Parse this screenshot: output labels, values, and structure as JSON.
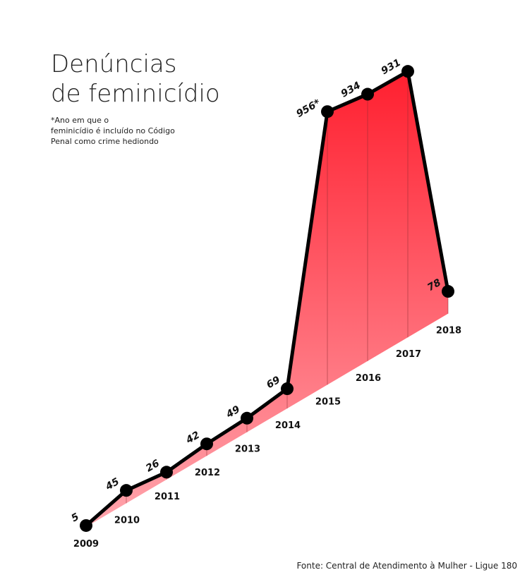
{
  "chart_data": {
    "type": "line",
    "title": "Denúncias de feminicídio",
    "note": "*Ano em que o feminicídio é incluído no Código Penal como crime hediondo",
    "source": "Fonte: Central de Atendimento à Mulher - Ligue 180",
    "categories": [
      "2009",
      "2010",
      "2011",
      "2012",
      "2013",
      "2014",
      "2015",
      "2016",
      "2017",
      "2018"
    ],
    "values": [
      5,
      45,
      26,
      42,
      49,
      69,
      956,
      934,
      931,
      78
    ],
    "value_labels": [
      "5",
      "45",
      "26",
      "42",
      "49",
      "69",
      "956*",
      "934",
      "931",
      "78"
    ],
    "color": "#000000",
    "fill_top": "#ff1f2f",
    "fill_bottom": "#ffa5ad"
  }
}
